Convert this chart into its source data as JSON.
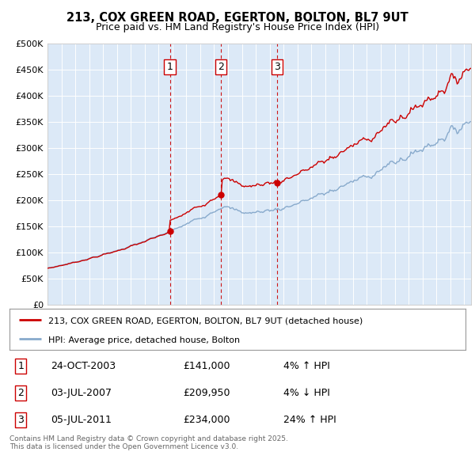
{
  "title": "213, COX GREEN ROAD, EGERTON, BOLTON, BL7 9UT",
  "subtitle": "Price paid vs. HM Land Registry's House Price Index (HPI)",
  "plot_bg_color": "#dce9f7",
  "red_line_color": "#cc0000",
  "blue_line_color": "#88aacc",
  "ylim": [
    0,
    500000
  ],
  "yticks": [
    0,
    50000,
    100000,
    150000,
    200000,
    250000,
    300000,
    350000,
    400000,
    450000,
    500000
  ],
  "ytick_labels": [
    "£0",
    "£50K",
    "£100K",
    "£150K",
    "£200K",
    "£250K",
    "£300K",
    "£350K",
    "£400K",
    "£450K",
    "£500K"
  ],
  "sale_year_floats": [
    2003.81,
    2007.5,
    2011.51
  ],
  "sale_prices": [
    141000,
    209950,
    234000
  ],
  "sale_labels": [
    "1",
    "2",
    "3"
  ],
  "legend_label_red": "213, COX GREEN ROAD, EGERTON, BOLTON, BL7 9UT (detached house)",
  "legend_label_blue": "HPI: Average price, detached house, Bolton",
  "footer": "Contains HM Land Registry data © Crown copyright and database right 2025.\nThis data is licensed under the Open Government Licence v3.0.",
  "sale_rows": [
    [
      "1",
      "24-OCT-2003",
      "£141,000",
      "4% ↑ HPI"
    ],
    [
      "2",
      "03-JUL-2007",
      "£209,950",
      "4% ↓ HPI"
    ],
    [
      "3",
      "05-JUL-2011",
      "£234,000",
      "24% ↑ HPI"
    ]
  ]
}
